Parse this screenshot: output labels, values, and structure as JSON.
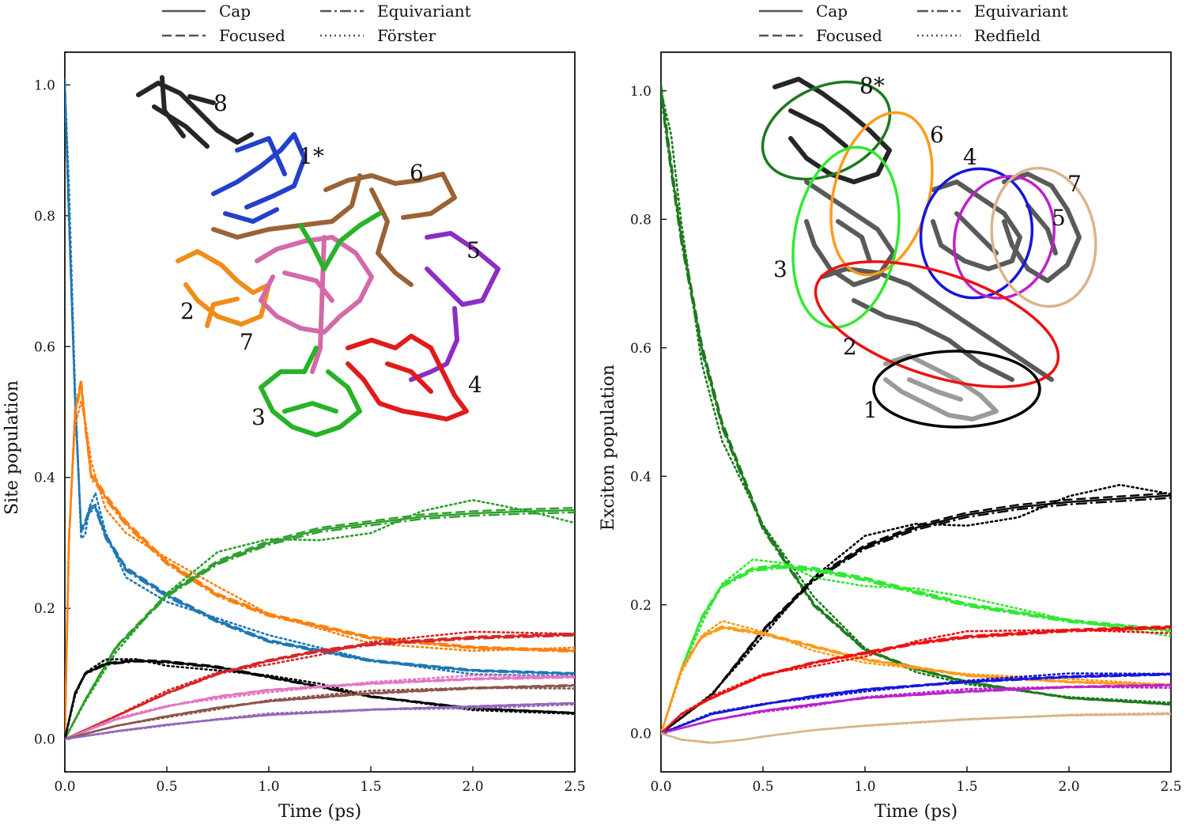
{
  "chart_data": [
    {
      "type": "line",
      "xlabel": "Time (ps)",
      "ylabel": "Site population",
      "xlim": [
        0.0,
        2.5
      ],
      "ylim": [
        -0.05,
        1.05
      ],
      "xticks": [
        "0.0",
        "0.5",
        "1.0",
        "1.5",
        "2.0",
        "2.5"
      ],
      "yticks": [
        "0.0",
        "0.2",
        "0.4",
        "0.6",
        "0.8",
        "1.0"
      ],
      "legend": [
        "Cap",
        "Focused",
        "Equivariant",
        "Förster"
      ],
      "legend_position": "top",
      "inset_labels": [
        "8",
        "1*",
        "6",
        "5",
        "2",
        "7",
        "4",
        "3"
      ],
      "series": [
        {
          "color": "#1f77b4",
          "x": [
            0,
            0.02,
            0.05,
            0.08,
            0.1,
            0.12,
            0.15,
            0.2,
            0.3,
            0.5,
            0.75,
            1.0,
            1.5,
            2.0,
            2.5
          ],
          "y": [
            1.0,
            0.8,
            0.52,
            0.32,
            0.33,
            0.35,
            0.355,
            0.31,
            0.26,
            0.22,
            0.18,
            0.15,
            0.12,
            0.105,
            0.1
          ]
        },
        {
          "color": "#ff7f0e",
          "x": [
            0,
            0.02,
            0.05,
            0.08,
            0.1,
            0.13,
            0.15,
            0.2,
            0.3,
            0.5,
            0.75,
            1.0,
            1.5,
            2.0,
            2.5
          ],
          "y": [
            0.0,
            0.3,
            0.5,
            0.545,
            0.48,
            0.4,
            0.395,
            0.37,
            0.33,
            0.27,
            0.22,
            0.19,
            0.155,
            0.14,
            0.135
          ]
        },
        {
          "color": "#2ca02c",
          "x": [
            0,
            0.1,
            0.25,
            0.5,
            0.75,
            1.0,
            1.25,
            1.5,
            1.75,
            2.0,
            2.25,
            2.5
          ],
          "y": [
            0.0,
            0.06,
            0.14,
            0.22,
            0.27,
            0.3,
            0.32,
            0.33,
            0.34,
            0.345,
            0.348,
            0.35
          ]
        },
        {
          "color": "#000000",
          "x": [
            0,
            0.05,
            0.1,
            0.2,
            0.35,
            0.5,
            0.75,
            1.0,
            1.25,
            1.5,
            2.0,
            2.5
          ],
          "y": [
            0.0,
            0.07,
            0.1,
            0.115,
            0.12,
            0.118,
            0.11,
            0.095,
            0.08,
            0.065,
            0.047,
            0.04
          ]
        },
        {
          "color": "#d62728",
          "x": [
            0,
            0.25,
            0.5,
            0.75,
            1.0,
            1.25,
            1.5,
            2.0,
            2.5
          ],
          "y": [
            0.0,
            0.035,
            0.07,
            0.1,
            0.12,
            0.135,
            0.145,
            0.155,
            0.16
          ]
        },
        {
          "color": "#e377c2",
          "x": [
            0,
            0.25,
            0.5,
            0.75,
            1.0,
            1.5,
            2.0,
            2.5
          ],
          "y": [
            0.0,
            0.03,
            0.05,
            0.065,
            0.075,
            0.085,
            0.092,
            0.095
          ]
        },
        {
          "color": "#8c564b",
          "x": [
            0,
            0.25,
            0.5,
            0.75,
            1.0,
            1.5,
            2.0,
            2.5
          ],
          "y": [
            0.0,
            0.02,
            0.035,
            0.048,
            0.058,
            0.07,
            0.078,
            0.082
          ]
        },
        {
          "color": "#9467bd",
          "x": [
            0,
            0.25,
            0.5,
            0.75,
            1.0,
            1.5,
            2.0,
            2.5
          ],
          "y": [
            0.0,
            0.012,
            0.022,
            0.03,
            0.037,
            0.045,
            0.05,
            0.055
          ]
        }
      ]
    },
    {
      "type": "line",
      "xlabel": "Time (ps)",
      "ylabel": "Exciton population",
      "xlim": [
        0.0,
        2.5
      ],
      "ylim": [
        -0.06,
        1.06
      ],
      "xticks": [
        "0.0",
        "0.5",
        "1.0",
        "1.5",
        "2.0",
        "2.5"
      ],
      "yticks": [
        "0.0",
        "0.2",
        "0.4",
        "0.6",
        "0.8",
        "1.0"
      ],
      "legend": [
        "Cap",
        "Focused",
        "Equivariant",
        "Redfield"
      ],
      "legend_position": "top",
      "inset_labels": [
        "8*",
        "6",
        "4",
        "7",
        "5",
        "3",
        "2",
        "1"
      ],
      "series": [
        {
          "color": "#1e7a1e",
          "x": [
            0,
            0.05,
            0.1,
            0.2,
            0.3,
            0.5,
            0.75,
            1.0,
            1.25,
            1.5,
            2.0,
            2.5
          ],
          "y": [
            1.0,
            0.88,
            0.77,
            0.6,
            0.48,
            0.32,
            0.2,
            0.13,
            0.1,
            0.08,
            0.055,
            0.045
          ]
        },
        {
          "color": "#000000",
          "x": [
            0,
            0.25,
            0.4,
            0.5,
            0.75,
            1.0,
            1.25,
            1.5,
            1.75,
            2.0,
            2.25,
            2.5
          ],
          "y": [
            0.0,
            0.06,
            0.12,
            0.16,
            0.24,
            0.29,
            0.32,
            0.34,
            0.352,
            0.36,
            0.365,
            0.37
          ]
        },
        {
          "color": "#33e833",
          "x": [
            0,
            0.1,
            0.2,
            0.3,
            0.45,
            0.6,
            0.75,
            1.0,
            1.25,
            1.5,
            2.0,
            2.5
          ],
          "y": [
            0.0,
            0.1,
            0.18,
            0.23,
            0.255,
            0.26,
            0.255,
            0.24,
            0.22,
            0.2,
            0.175,
            0.16
          ]
        },
        {
          "color": "#ff9a1a",
          "x": [
            0,
            0.1,
            0.2,
            0.3,
            0.5,
            0.75,
            1.0,
            1.5,
            2.0,
            2.5
          ],
          "y": [
            0.0,
            0.1,
            0.15,
            0.165,
            0.155,
            0.135,
            0.115,
            0.09,
            0.08,
            0.075
          ]
        },
        {
          "color": "#ee1111",
          "x": [
            0,
            0.1,
            0.25,
            0.5,
            0.75,
            1.0,
            1.25,
            1.5,
            2.0,
            2.5
          ],
          "y": [
            0.0,
            0.03,
            0.055,
            0.09,
            0.11,
            0.125,
            0.14,
            0.15,
            0.16,
            0.165
          ]
        },
        {
          "color": "#1515dd",
          "x": [
            0,
            0.25,
            0.5,
            0.75,
            1.0,
            1.5,
            2.0,
            2.5
          ],
          "y": [
            0.0,
            0.03,
            0.045,
            0.058,
            0.068,
            0.08,
            0.088,
            0.092
          ]
        },
        {
          "color": "#bb22cc",
          "x": [
            0,
            0.25,
            0.5,
            0.75,
            1.0,
            1.5,
            2.0,
            2.5
          ],
          "y": [
            0.0,
            0.02,
            0.035,
            0.045,
            0.055,
            0.065,
            0.072,
            0.075
          ]
        },
        {
          "color": "#d9b48a",
          "x": [
            0,
            0.1,
            0.25,
            0.4,
            0.5,
            0.75,
            1.0,
            1.5,
            2.0,
            2.5
          ],
          "y": [
            0.0,
            -0.01,
            -0.015,
            -0.01,
            -0.005,
            0.005,
            0.012,
            0.022,
            0.028,
            0.03
          ]
        }
      ]
    }
  ]
}
